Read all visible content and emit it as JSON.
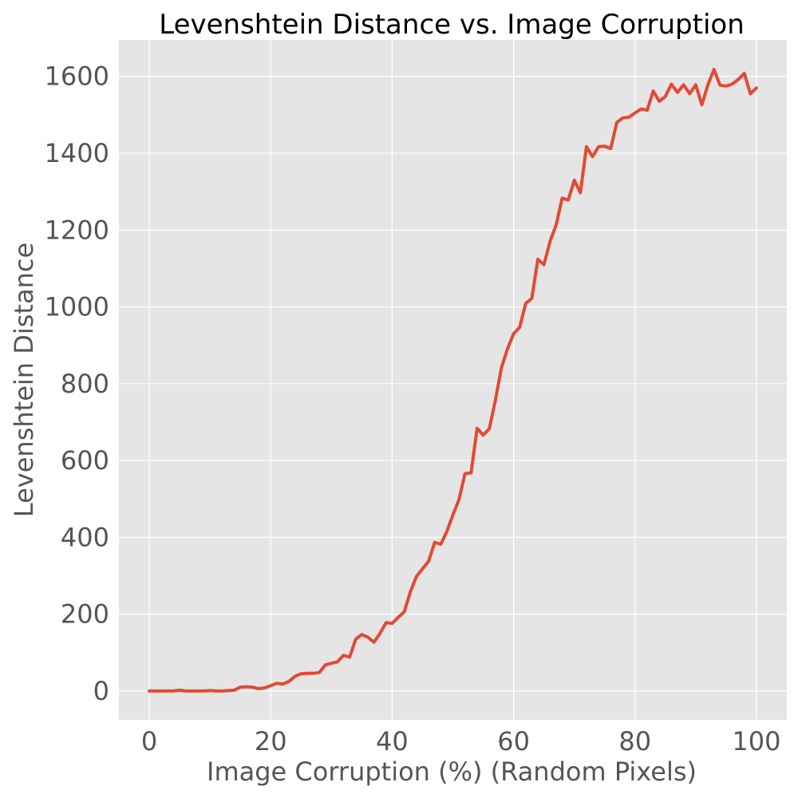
{
  "chart_data": {
    "type": "line",
    "title": "Levenshtein Distance vs. Image Corruption",
    "xlabel": "Image Corruption (%) (Random Pixels)",
    "ylabel": "Levenshtein Distance",
    "xlim": [
      -5,
      105
    ],
    "ylim": [
      -75,
      1695
    ],
    "x_ticks": [
      "0",
      "20",
      "40",
      "60",
      "80",
      "100"
    ],
    "y_ticks": [
      "0",
      "200",
      "400",
      "600",
      "800",
      "1000",
      "1200",
      "1400",
      "1600"
    ],
    "grid": true,
    "colors": {
      "plot_background": "#e5e5e5",
      "grid": "#ffffff",
      "line": "#e24a33",
      "text": "#555555",
      "title": "#000000"
    },
    "series": [
      {
        "x": [
          0,
          1,
          2,
          3,
          4,
          5,
          6,
          7,
          8,
          9,
          10,
          11,
          12,
          13,
          14,
          15,
          16,
          17,
          18,
          19,
          20,
          21,
          22,
          23,
          24,
          25,
          26,
          27,
          28,
          29,
          30,
          31,
          32,
          33,
          34,
          35,
          36,
          37,
          38,
          39,
          40,
          41,
          42,
          43,
          44,
          45,
          46,
          47,
          48,
          49,
          50,
          51,
          52,
          53,
          54,
          55,
          56,
          57,
          58,
          59,
          60,
          61,
          62,
          63,
          64,
          65,
          66,
          67,
          68,
          69,
          70,
          71,
          72,
          73,
          74,
          75,
          76,
          77,
          78,
          79,
          80,
          81,
          82,
          83,
          84,
          85,
          86,
          87,
          88,
          89,
          90,
          91,
          92,
          93,
          94,
          95,
          96,
          97,
          98,
          99,
          100
        ],
        "values": [
          0,
          0,
          0,
          0,
          0,
          2,
          0,
          0,
          0,
          0,
          1,
          0,
          0,
          1,
          2,
          10,
          11,
          10,
          6,
          8,
          14,
          20,
          18,
          25,
          38,
          45,
          46,
          46,
          48,
          68,
          72,
          76,
          93,
          88,
          135,
          147,
          140,
          127,
          150,
          178,
          176,
          192,
          206,
          258,
          298,
          318,
          338,
          387,
          382,
          415,
          458,
          498,
          566,
          568,
          684,
          666,
          683,
          757,
          842,
          891,
          930,
          947,
          1009,
          1022,
          1124,
          1110,
          1170,
          1213,
          1283,
          1278,
          1330,
          1297,
          1417,
          1391,
          1417,
          1418,
          1412,
          1480,
          1492,
          1494,
          1505,
          1515,
          1512,
          1562,
          1535,
          1548,
          1580,
          1558,
          1578,
          1555,
          1578,
          1526,
          1578,
          1618,
          1577,
          1575,
          1580,
          1592,
          1608,
          1555,
          1570
        ]
      }
    ]
  }
}
